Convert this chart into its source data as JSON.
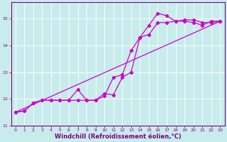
{
  "xlabel": "Windchill (Refroidissement éolien,°C)",
  "bg_color": "#c8ecec",
  "line_color": "#cc00cc",
  "grid_color": "#ffffff",
  "xlim": [
    -0.5,
    23.5
  ],
  "ylim": [
    11.0,
    15.6
  ],
  "yticks": [
    11,
    12,
    13,
    14,
    15
  ],
  "xticks": [
    0,
    1,
    2,
    3,
    4,
    5,
    6,
    7,
    8,
    9,
    10,
    11,
    12,
    13,
    14,
    15,
    16,
    17,
    18,
    19,
    20,
    21,
    22,
    23
  ],
  "series1_x": [
    0,
    1,
    2,
    3,
    4,
    5,
    6,
    7,
    8,
    9,
    10,
    11,
    12,
    13,
    14,
    15,
    16,
    17,
    18,
    19,
    20,
    21,
    22,
    23
  ],
  "series1_y": [
    11.5,
    11.55,
    11.85,
    11.95,
    11.95,
    11.95,
    11.95,
    12.35,
    11.95,
    11.95,
    12.2,
    12.15,
    12.8,
    13.0,
    14.3,
    14.4,
    14.85,
    14.85,
    14.9,
    14.95,
    14.95,
    14.85,
    14.85,
    14.9
  ],
  "series2_x": [
    0,
    1,
    2,
    3,
    4,
    5,
    6,
    7,
    8,
    9,
    10,
    11,
    12,
    13,
    14,
    15,
    16,
    17,
    18,
    19,
    20,
    21,
    22,
    23
  ],
  "series2_y": [
    11.5,
    11.55,
    11.85,
    11.95,
    11.95,
    11.95,
    11.95,
    11.95,
    11.95,
    11.95,
    12.1,
    12.8,
    12.9,
    13.8,
    14.3,
    14.75,
    15.2,
    15.1,
    14.9,
    14.9,
    14.85,
    14.75,
    14.9,
    14.9
  ],
  "series3_x": [
    0,
    23
  ],
  "series3_y": [
    11.5,
    14.9
  ],
  "marker": "D",
  "marker_size": 2.2,
  "linewidth": 0.9,
  "tick_fontsize": 4.5,
  "xlabel_fontsize": 6.0,
  "axis_color": "#800080",
  "spine_color": "#800080"
}
